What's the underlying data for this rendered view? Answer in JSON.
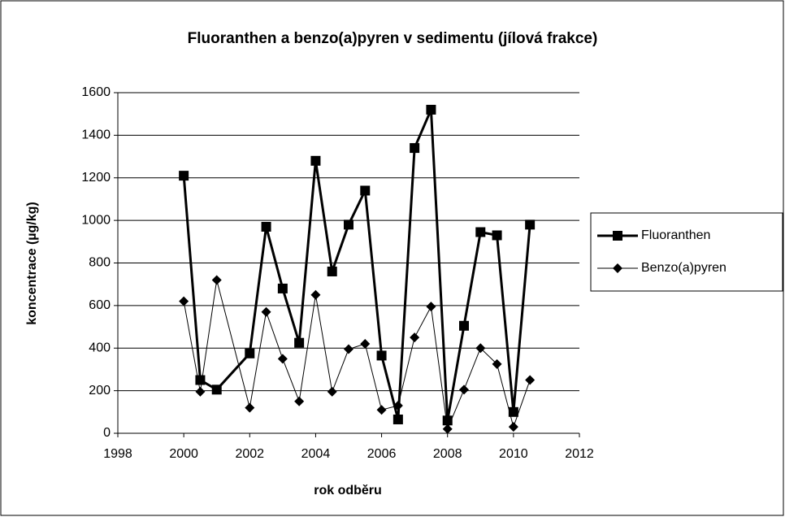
{
  "chart_data": {
    "type": "scatter-line",
    "title": "Fluoranthen a benzo(a)pyren v sedimentu (jílová frakce)",
    "xlabel": "rok odběru",
    "ylabel": "koncentrace (µg/kg)",
    "x": [
      2000,
      2000.5,
      2001,
      2002,
      2002.5,
      2003,
      2003.5,
      2004,
      2004.5,
      2005,
      2005.5,
      2006,
      2006.5,
      2007,
      2007.5,
      2008,
      2008.5,
      2009,
      2009.5,
      2010,
      2010.5
    ],
    "series": [
      {
        "name": "Fluoranthen",
        "color": "#000000",
        "marker": "square",
        "values": [
          1210,
          250,
          205,
          375,
          970,
          680,
          425,
          1280,
          760,
          980,
          1140,
          365,
          65,
          1340,
          1520,
          60,
          505,
          945,
          930,
          100,
          980
        ]
      },
      {
        "name": "Benzo(a)pyren",
        "color": "#000000",
        "marker": "diamond",
        "values": [
          620,
          195,
          720,
          120,
          570,
          350,
          150,
          650,
          195,
          395,
          420,
          110,
          130,
          450,
          595,
          20,
          205,
          400,
          325,
          30,
          250
        ]
      }
    ],
    "xlim": [
      1998,
      2012
    ],
    "xticks": [
      1998,
      2000,
      2002,
      2004,
      2006,
      2008,
      2010,
      2012
    ],
    "ylim": [
      0,
      1600
    ],
    "yticks": [
      0,
      200,
      400,
      600,
      800,
      1000,
      1200,
      1400,
      1600
    ],
    "grid": true,
    "legend": "right"
  }
}
